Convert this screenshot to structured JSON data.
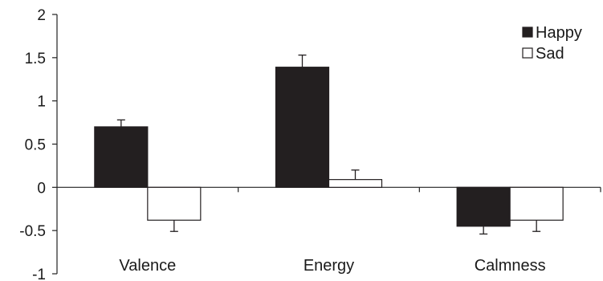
{
  "chart_data": {
    "type": "bar",
    "categories": [
      "Valence",
      "Energy",
      "Calmness"
    ],
    "series": [
      {
        "name": "Happy",
        "values": [
          0.7,
          1.39,
          -0.45
        ],
        "errors": [
          0.08,
          0.14,
          0.09
        ],
        "color": "#231f20"
      },
      {
        "name": "Sad",
        "values": [
          -0.38,
          0.09,
          -0.38
        ],
        "errors": [
          0.13,
          0.11,
          0.13
        ],
        "color": "#ffffff"
      }
    ],
    "yticks": [
      "2",
      "1.5",
      "1",
      "0.5",
      "0",
      "-0.5",
      "-1"
    ],
    "ylim": [
      -1,
      2
    ],
    "legend": "top-right",
    "title": "",
    "xlabel": "",
    "ylabel": ""
  }
}
